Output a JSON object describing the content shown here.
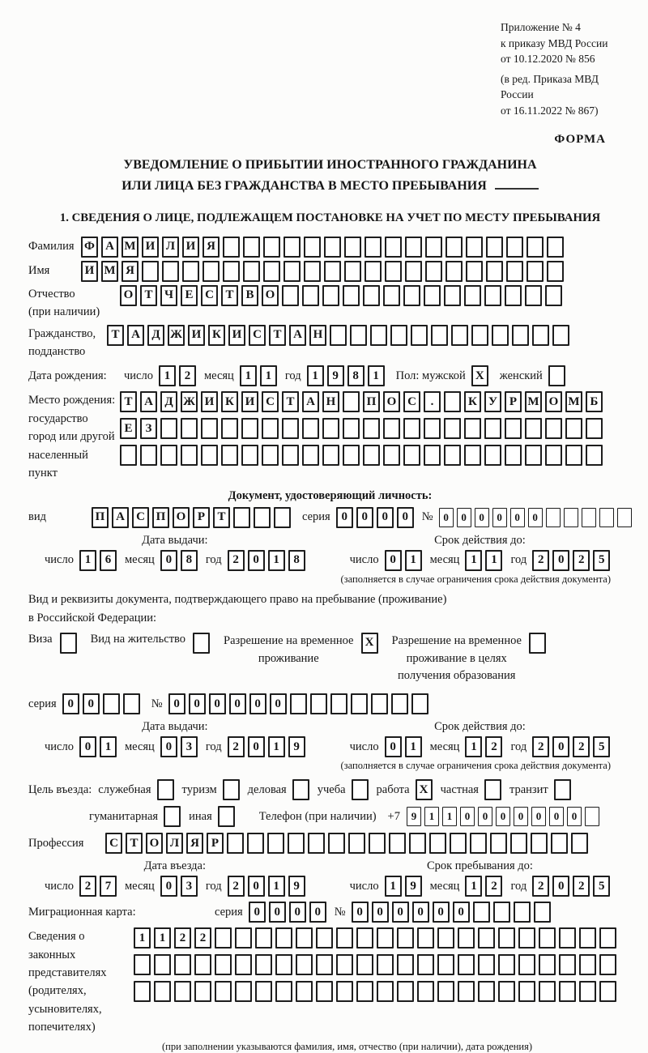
{
  "labels": {
    "day": "число",
    "month": "месяц",
    "year": "год"
  },
  "page": {
    "appendix_lines": [
      "Приложение № 4",
      "к приказу МВД России",
      "от 10.12.2020 № 856",
      "(в ред. Приказа МВД России",
      "от 16.11.2022 № 867)"
    ],
    "forma": "ФОРМА",
    "title1": "УВЕДОМЛЕНИЕ О ПРИБЫТИИ ИНОСТРАННОГО ГРАЖДАНИНА",
    "title2": "ИЛИ ЛИЦА БЕЗ ГРАЖДАНСТВА В МЕСТО ПРЕБЫВАНИЯ",
    "section1": "1. СВЕДЕНИЯ О ЛИЦЕ, ПОДЛЕЖАЩЕМ ПОСТАНОВКЕ НА УЧЕТ ПО МЕСТУ ПРЕБЫВАНИЯ"
  },
  "fields": {
    "surname": {
      "label": "Фамилия",
      "cells": "ФАМИЛИЯ",
      "len": 24
    },
    "name": {
      "label": "Имя",
      "cells": "ИМЯ",
      "len": 24
    },
    "patronymic": {
      "label1": "Отчество",
      "label2": "(при наличии)",
      "cells": "ОТЧЕСТВО",
      "len": 22
    },
    "citizenship": {
      "label1": "Гражданство,",
      "label2": "подданство",
      "cells": "ТАДЖИКИСТАН",
      "len": 23
    },
    "birth_date": {
      "label": "Дата рождения:",
      "day": "12",
      "month": "11",
      "year": "1981",
      "sex_label": "Пол: мужской",
      "male": "X",
      "female_label": "женский",
      "female": ""
    },
    "birth_place": {
      "label1": "Место рождения:",
      "label2": "государство",
      "label3": "город или другой",
      "label4": "населенный пункт",
      "row1": {
        "cells": "ТАДЖИКИСТАН ПОС. КУРМОМБ",
        "len": 24
      },
      "row2": {
        "cells": "ЕЗ",
        "len": 24
      },
      "row3": {
        "cells": "",
        "len": 24
      }
    }
  },
  "id_doc": {
    "header": "Документ, удостоверяющий личность:",
    "kind_label": "вид",
    "kind": {
      "cells": "ПАСПОРТ",
      "len": 10
    },
    "series_label": "серия",
    "series": {
      "cells": "0000",
      "len": 4
    },
    "number_label": "№",
    "number": {
      "cells": "000000",
      "len": 11
    },
    "issue_title": "Дата выдачи:",
    "issue": {
      "day": "16",
      "month": "08",
      "year": "2018"
    },
    "expiry_title": "Срок действия до:",
    "expiry": {
      "day": "01",
      "month": "11",
      "year": "2025"
    },
    "note": "(заполняется в случае ограничения срока действия документа)"
  },
  "resid_doc": {
    "intro1": "Вид и реквизиты документа, подтверждающего право на пребывание (проживание)",
    "intro2": "в Российской Федерации:",
    "opt_visa": {
      "label": "Виза",
      "checked": ""
    },
    "opt_residence": {
      "label": "Вид на жительство",
      "checked": ""
    },
    "opt_temp": {
      "line1": "Разрешение на временное",
      "line2": "проживание",
      "checked": "X"
    },
    "opt_edu": {
      "line1": "Разрешение на временное",
      "line2": "проживание в целях",
      "line3": "получения образования",
      "checked": ""
    },
    "series_label": "серия",
    "series": {
      "cells": "00",
      "len": 4
    },
    "number_label": "№",
    "number": {
      "cells": "000000",
      "len": 13
    },
    "issue_title": "Дата выдачи:",
    "issue": {
      "day": "01",
      "month": "03",
      "year": "2019"
    },
    "expiry_title": "Срок действия до:",
    "expiry": {
      "day": "01",
      "month": "12",
      "year": "2025"
    },
    "note": "(заполняется в случае ограничения срока действия документа)"
  },
  "purpose": {
    "label": "Цель въезда:",
    "opt1": {
      "label": "служебная",
      "checked": ""
    },
    "opt2": {
      "label": "туризм",
      "checked": ""
    },
    "opt3": {
      "label": "деловая",
      "checked": ""
    },
    "opt4": {
      "label": "учеба",
      "checked": ""
    },
    "opt5": {
      "label": "работа",
      "checked": "X"
    },
    "opt6": {
      "label": "частная",
      "checked": ""
    },
    "opt7": {
      "label": "транзит",
      "checked": ""
    },
    "opt8": {
      "label": "гуманитарная",
      "checked": ""
    },
    "opt9": {
      "label": "иная",
      "checked": ""
    },
    "phone_label": "Телефон (при наличии)",
    "phone_prefix": "+7",
    "phone": {
      "cells": "9110000000",
      "len": 11
    }
  },
  "profession": {
    "label": "Профессия",
    "cells": "СТОЛЯР",
    "len": 24
  },
  "entry": {
    "issue_title": "Дата въезда:",
    "issue": {
      "day": "27",
      "month": "03",
      "year": "2019"
    },
    "expiry_title": "Срок пребывания до:",
    "expiry": {
      "day": "19",
      "month": "12",
      "year": "2025"
    }
  },
  "migration_card": {
    "label": "Миграционная карта:",
    "series_label": "серия",
    "series": {
      "cells": "0000",
      "len": 4
    },
    "number_label": "№",
    "number": {
      "cells": "000000",
      "len": 10
    }
  },
  "representatives": {
    "label1": "Сведения о",
    "label2": "законных",
    "label3": "представителях",
    "label4": "(родителях,",
    "label5": "усыновителях,",
    "label6": "попечителях)",
    "row1": {
      "cells": "1122",
      "len": 24
    },
    "row2": {
      "cells": "",
      "len": 24
    },
    "row3": {
      "cells": "",
      "len": 24
    },
    "note": "(при заполнении указываются фамилия, имя, отчество (при наличии), дата рождения)"
  }
}
